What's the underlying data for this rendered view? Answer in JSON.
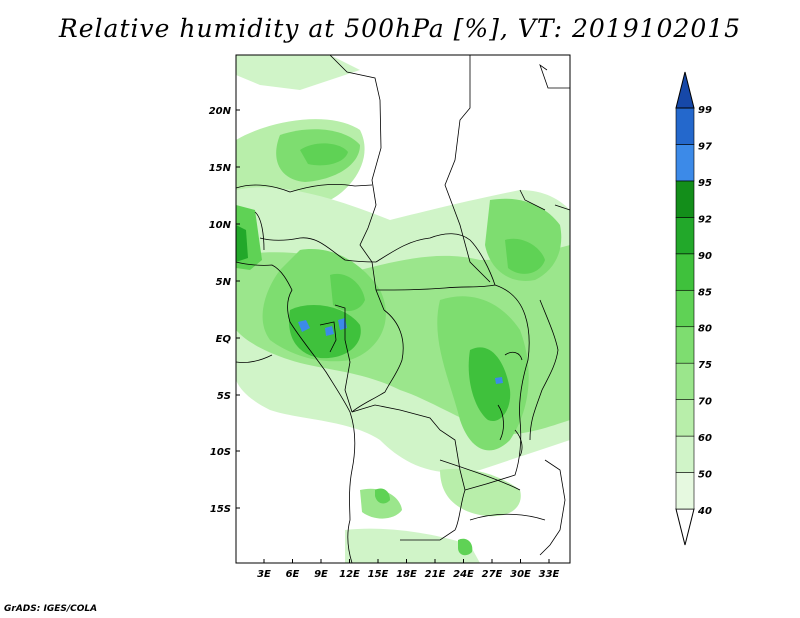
{
  "title": "Relative humidity at 500hPa [%], VT: 2019102015",
  "footer": "GrADS: IGES/COLA",
  "map": {
    "lat_labels": [
      "20N",
      "15N",
      "10N",
      "5N",
      "EQ",
      "5S",
      "10S",
      "15S"
    ],
    "lon_labels": [
      "3E",
      "6E",
      "9E",
      "12E",
      "15E",
      "18E",
      "21E",
      "24E",
      "27E",
      "30E",
      "33E"
    ]
  },
  "colorbar": {
    "levels": [
      "40",
      "50",
      "60",
      "70",
      "75",
      "80",
      "85",
      "90",
      "92",
      "95",
      "97",
      "99"
    ],
    "colors": [
      "#ffffff",
      "#e6f9e0",
      "#d0f4c8",
      "#b8eeaa",
      "#9be68c",
      "#7edd70",
      "#5fd255",
      "#3fc13c",
      "#22a82a",
      "#138e1a",
      "#3c8ae8",
      "#2468cc",
      "#1648a8"
    ]
  },
  "colors": {
    "background": "#ffffff",
    "frame": "#000000"
  }
}
